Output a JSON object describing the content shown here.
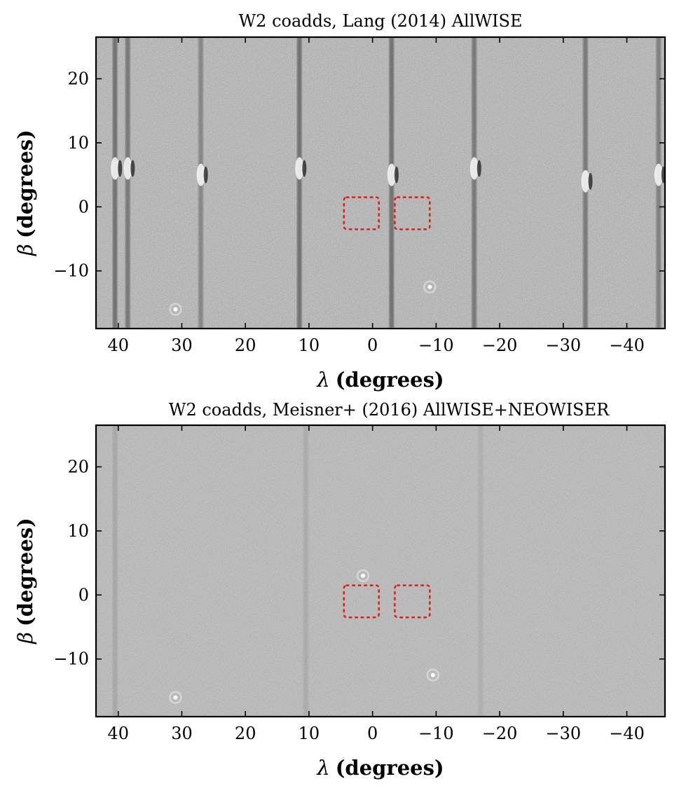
{
  "colors": {
    "frame": "#000000",
    "regions": "#e02020",
    "background": "#ffffff"
  },
  "chart_data": [
    {
      "type": "heatmap",
      "title": "W2 coadds, Lang (2014) AllWISE",
      "xlabel_symbol": "λ",
      "xlabel_text": "(degrees)",
      "ylabel_symbol": "β",
      "ylabel_text": "(degrees)",
      "xlim": [
        43.5,
        -46
      ],
      "ylim": [
        -19,
        26.5
      ],
      "x_inverted": true,
      "xticks": [
        40,
        30,
        20,
        10,
        0,
        -10,
        -20,
        -30,
        -40
      ],
      "xtick_labels": [
        "40",
        "30",
        "20",
        "10",
        "0",
        "−10",
        "−20",
        "−30",
        "−40"
      ],
      "yticks": [
        20,
        10,
        0,
        -10
      ],
      "ytick_labels": [
        "20",
        "10",
        "0",
        "−10"
      ],
      "colormap": "grayscale",
      "streaks": [
        {
          "lambda": 40.5,
          "beta": 6,
          "strength": 1.0
        },
        {
          "lambda": 38.5,
          "beta": 6,
          "strength": 0.9
        },
        {
          "lambda": 27,
          "beta": 5,
          "strength": 0.7
        },
        {
          "lambda": 11.5,
          "beta": 6,
          "strength": 1.0
        },
        {
          "lambda": -3,
          "beta": 5,
          "strength": 1.0
        },
        {
          "lambda": -16,
          "beta": 6,
          "strength": 0.9
        },
        {
          "lambda": -33.5,
          "beta": 4,
          "strength": 0.9
        },
        {
          "lambda": -45,
          "beta": 5,
          "strength": 0.8
        }
      ],
      "sources": [
        {
          "lambda": 31,
          "beta": -16
        },
        {
          "lambda": -9,
          "beta": -12.5
        }
      ],
      "regions": [
        {
          "lambda": [
            4.5,
            -1
          ],
          "beta": [
            1.5,
            -3.5
          ]
        },
        {
          "lambda": [
            -3.5,
            -9
          ],
          "beta": [
            1.5,
            -3.5
          ]
        }
      ]
    },
    {
      "type": "heatmap",
      "title": "W2 coadds, Meisner+ (2016) AllWISE+NEOWISER",
      "xlabel_symbol": "λ",
      "xlabel_text": "(degrees)",
      "ylabel_symbol": "β",
      "ylabel_text": "(degrees)",
      "xlim": [
        43.5,
        -46
      ],
      "ylim": [
        -19,
        26.5
      ],
      "x_inverted": true,
      "xticks": [
        40,
        30,
        20,
        10,
        0,
        -10,
        -20,
        -30,
        -40
      ],
      "xtick_labels": [
        "40",
        "30",
        "20",
        "10",
        "0",
        "−10",
        "−20",
        "−30",
        "−40"
      ],
      "yticks": [
        20,
        10,
        0,
        -10
      ],
      "ytick_labels": [
        "20",
        "10",
        "0",
        "−10"
      ],
      "colormap": "grayscale",
      "streaks": [
        {
          "lambda": 40.5,
          "beta": 3,
          "strength": 0.25
        },
        {
          "lambda": 10.5,
          "beta": 3,
          "strength": 0.2
        },
        {
          "lambda": -17,
          "beta": 3,
          "strength": 0.15
        }
      ],
      "sources": [
        {
          "lambda": 31,
          "beta": -16
        },
        {
          "lambda": -9.5,
          "beta": -12.5
        },
        {
          "lambda": 1.5,
          "beta": 3
        }
      ],
      "regions": [
        {
          "lambda": [
            4.5,
            -1
          ],
          "beta": [
            1.5,
            -3.5
          ]
        },
        {
          "lambda": [
            -3.5,
            -9
          ],
          "beta": [
            1.5,
            -3.5
          ]
        }
      ]
    }
  ]
}
